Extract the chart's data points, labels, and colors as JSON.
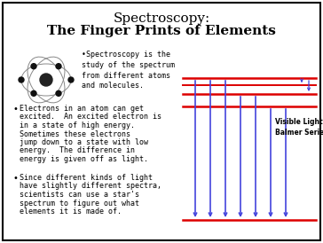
{
  "title_line1": "Spectroscopy:",
  "title_line2": "The Finger Prints of Elements",
  "background_color": "#ffffff",
  "border_color": "#000000",
  "text_color": "#000000",
  "red_color": "#dd0000",
  "blue_color": "#4444dd",
  "bullet1": "•Spectroscopy is the\nstudy of the spectrum\nfrom different atoms\nand molecules.",
  "bullet2_lines": [
    "Electrons in an atom can get",
    "excited.  An excited electron is",
    "in a state of high energy.",
    "Sometimes these electrons",
    "jump down to a state with low",
    "energy.  The difference in",
    "energy is given off as light."
  ],
  "bullet3_lines": [
    "Since different kinds of light",
    "have slightly different spectra,",
    "scientists can use a star's",
    "spectrum to figure out what",
    "elements it is made of."
  ],
  "label_line1": "Visible Light",
  "label_line2": "Balmer Series",
  "title_fs": 11,
  "body_fs": 6.0,
  "label_fs": 5.5
}
